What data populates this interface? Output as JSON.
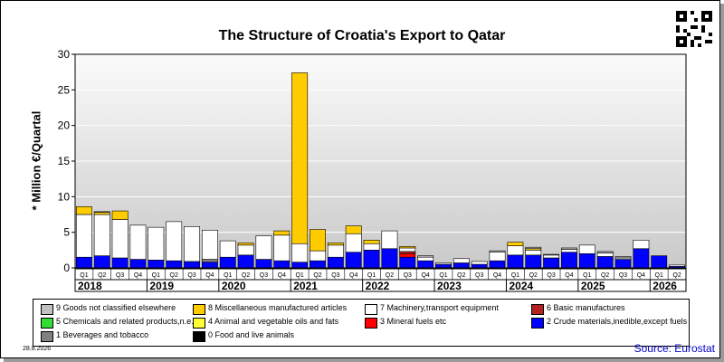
{
  "chart_data": {
    "type": "bar",
    "stacked": true,
    "title": "The Structure of Croatia's Export to Qatar",
    "ylabel": "* Million €/Quartal",
    "ylim": [
      0,
      30
    ],
    "yticks": [
      0,
      5,
      10,
      15,
      20,
      25,
      30
    ],
    "grid": true,
    "legend_position": "bottom",
    "categories": [
      "Q1",
      "Q2",
      "Q3",
      "Q4",
      "Q1",
      "Q2",
      "Q3",
      "Q4",
      "Q1",
      "Q2",
      "Q3",
      "Q4",
      "Q1",
      "Q2",
      "Q3",
      "Q4",
      "Q1",
      "Q2",
      "Q3",
      "Q4",
      "Q1",
      "Q2",
      "Q3",
      "Q4",
      "Q1",
      "Q2",
      "Q3",
      "Q4",
      "Q1",
      "Q2",
      "Q3",
      "Q4",
      "Q1",
      "Q2"
    ],
    "years": [
      {
        "label": "2018",
        "start": 0,
        "count": 4
      },
      {
        "label": "2019",
        "start": 4,
        "count": 4
      },
      {
        "label": "2020",
        "start": 8,
        "count": 4
      },
      {
        "label": "2021",
        "start": 12,
        "count": 4
      },
      {
        "label": "2022",
        "start": 16,
        "count": 4
      },
      {
        "label": "2023",
        "start": 20,
        "count": 4
      },
      {
        "label": "2024",
        "start": 24,
        "count": 4
      },
      {
        "label": "2025",
        "start": 28,
        "count": 4
      },
      {
        "label": "2026",
        "start": 32,
        "count": 2
      }
    ],
    "series": [
      {
        "name": "2 Crude materials,inedible,except fuels",
        "color": "#0000ff",
        "values": [
          1.5,
          1.7,
          1.4,
          1.2,
          1.1,
          1.0,
          0.9,
          0.8,
          1.5,
          1.8,
          1.2,
          1.0,
          0.8,
          1.0,
          1.5,
          2.2,
          2.5,
          2.7,
          1.5,
          1.0,
          0.5,
          0.7,
          0.5,
          1.0,
          1.8,
          1.8,
          1.4,
          2.2,
          2.0,
          1.6,
          1.2,
          2.7,
          1.7,
          0.2
        ]
      },
      {
        "name": "3 Mineral fuels etc",
        "color": "#ff0000",
        "values": [
          0,
          0,
          0,
          0,
          0,
          0,
          0,
          0,
          0,
          0,
          0,
          0,
          0,
          0,
          0,
          0,
          0,
          0,
          0.5,
          0,
          0,
          0,
          0,
          0,
          0,
          0,
          0,
          0,
          0,
          0,
          0,
          0,
          0,
          0
        ]
      },
      {
        "name": "6 Basic manufactures",
        "color": "#b22222",
        "values": [
          0,
          0,
          0,
          0,
          0,
          0,
          0,
          0,
          0,
          0,
          0,
          0,
          0,
          0,
          0,
          0,
          0,
          0,
          0.3,
          0,
          0,
          0,
          0,
          0,
          0,
          0,
          0,
          0,
          0,
          0,
          0,
          0,
          0,
          0
        ]
      },
      {
        "name": "1 Beverages and tobacco",
        "color": "#808080",
        "values": [
          0,
          0,
          0,
          0,
          0,
          0,
          0,
          0.4,
          0,
          0,
          0,
          0,
          0,
          0,
          0,
          0,
          0,
          0,
          0,
          0,
          0,
          0,
          0,
          0,
          0,
          0,
          0,
          0,
          0,
          0,
          0,
          0,
          0,
          0
        ]
      },
      {
        "name": "7 Machinery,transport equipment",
        "color": "#ffffff",
        "values": [
          6.0,
          5.8,
          5.4,
          4.8,
          4.6,
          5.5,
          4.9,
          4.1,
          2.3,
          1.4,
          3.3,
          3.6,
          2.6,
          1.4,
          1.7,
          2.6,
          0.9,
          2.5,
          0.5,
          0.5,
          0.2,
          0.6,
          0.4,
          1.2,
          1.3,
          0.7,
          0.4,
          0.4,
          1.2,
          0.5,
          0.2,
          1.2,
          0,
          0.2
        ]
      },
      {
        "name": "8 Miscellaneous manufactured articles",
        "color": "#ffcc00",
        "values": [
          1.1,
          0.3,
          1.2,
          0,
          0,
          0,
          0,
          0,
          0,
          0.3,
          0,
          0.6,
          24.0,
          3.0,
          0.3,
          1.1,
          0.5,
          0,
          0.2,
          0,
          0,
          0,
          0,
          0,
          0.5,
          0.2,
          0,
          0,
          0,
          0,
          0,
          0,
          0,
          0
        ]
      },
      {
        "name": "9 Goods not classified elsewhere",
        "color": "#c0c0c0",
        "values": [
          0,
          0.1,
          0,
          0,
          0,
          0,
          0,
          0,
          0,
          0,
          0,
          0,
          0,
          0,
          0,
          0,
          0,
          0,
          0,
          0.2,
          0,
          0,
          0,
          0.2,
          0,
          0.2,
          0.1,
          0.2,
          0,
          0.2,
          0.2,
          0,
          0,
          0
        ]
      }
    ],
    "legend": [
      {
        "label": "9 Goods not classified elsewhere",
        "color": "#c0c0c0"
      },
      {
        "label": "8 Miscellaneous manufactured articles",
        "color": "#ffcc00"
      },
      {
        "label": "7 Machinery,transport equipment",
        "color": "#ffffff"
      },
      {
        "label": "6 Basic manufactures",
        "color": "#b22222"
      },
      {
        "label": "5 Chemicals and related products,n.e.s.",
        "color": "#33dd33"
      },
      {
        "label": "4 Animal and vegetable oils and fats",
        "color": "#ffff33"
      },
      {
        "label": "3 Mineral fuels etc",
        "color": "#ff0000"
      },
      {
        "label": "2 Crude materials,inedible,except fuels",
        "color": "#0000ff"
      },
      {
        "label": "1 Beverages and tobacco",
        "color": "#808080"
      },
      {
        "label": "0 Food and live animals",
        "color": "#000000"
      }
    ]
  },
  "footer": {
    "date": "28.8.2026",
    "source": "Source: Eurostat"
  }
}
